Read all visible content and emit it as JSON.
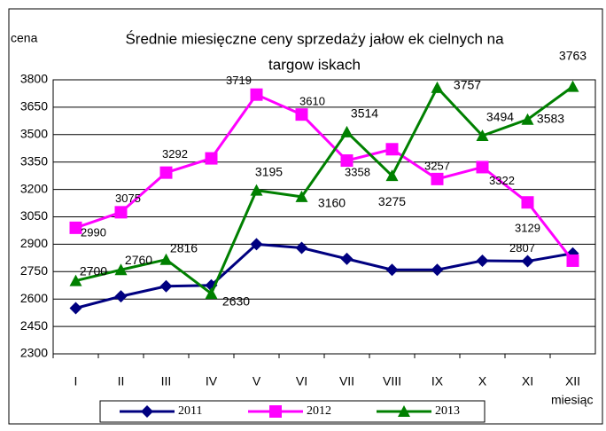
{
  "chart_data": {
    "type": "line",
    "title": [
      "Średnie miesięczne ceny sprzedaży jałow ek cielnych na",
      "targow iskach"
    ],
    "y_label": "cena",
    "x_label": "miesiąc",
    "categories": [
      "I",
      "II",
      "III",
      "IV",
      "V",
      "VI",
      "VII",
      "VIII",
      "IX",
      "X",
      "XI",
      "XII"
    ],
    "series": [
      {
        "name": "2011",
        "color": "#000080",
        "marker": "diamond",
        "values": [
          2550,
          2615,
          2670,
          2675,
          2900,
          2880,
          2820,
          2760,
          2760,
          2810,
          2807,
          2850
        ],
        "value_labels": [
          null,
          null,
          null,
          null,
          null,
          null,
          null,
          null,
          null,
          null,
          "2807",
          null
        ]
      },
      {
        "name": "2012",
        "color": "#ff00ff",
        "marker": "square",
        "values": [
          2990,
          3075,
          3292,
          3370,
          3719,
          3610,
          3358,
          3420,
          3257,
          3322,
          3129,
          2810
        ],
        "value_labels": [
          "2990",
          "3075",
          "3292",
          null,
          "3719",
          "3610",
          "3358",
          null,
          "3257",
          "3322",
          "3129",
          null
        ]
      },
      {
        "name": "2013",
        "color": "#008000",
        "marker": "triangle",
        "values": [
          2700,
          2760,
          2816,
          2630,
          3195,
          3160,
          3514,
          3275,
          3757,
          3494,
          3583,
          3763
        ],
        "value_labels": [
          "2700",
          "2760",
          "2816",
          "2630",
          "3195",
          "3160",
          "3514",
          "3275",
          "3757",
          "3494",
          "3583",
          "3763"
        ]
      }
    ],
    "ylim": [
      2300,
      3800
    ],
    "yticks": [
      2300,
      2450,
      2600,
      2750,
      2900,
      3050,
      3200,
      3350,
      3500,
      3650,
      3800
    ],
    "grid": true,
    "legend": "bottom"
  }
}
